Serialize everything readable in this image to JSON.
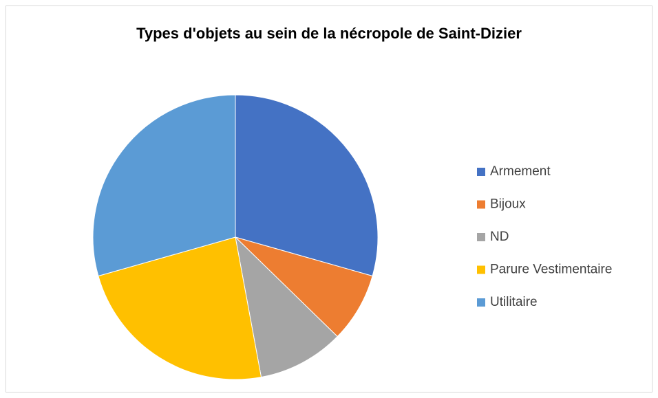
{
  "chart_data": {
    "type": "pie",
    "title": "Types d'objets au sein de la nécropole de Saint-Dizier",
    "categories": [
      "Armement",
      "Bijoux",
      "ND",
      "Parure Vestimentaire",
      "Utilitaire"
    ],
    "values": [
      29.4,
      7.9,
      9.8,
      23.5,
      29.4
    ],
    "colors": [
      "#4472c4",
      "#ed7d31",
      "#a5a5a5",
      "#ffc000",
      "#5b9bd5"
    ],
    "legend": "right"
  }
}
